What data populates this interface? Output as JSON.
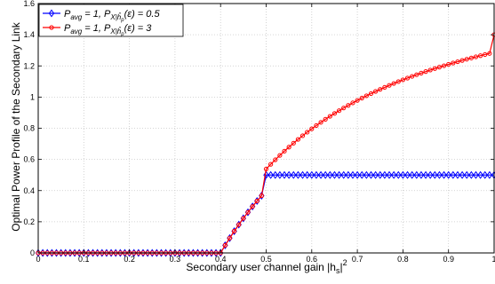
{
  "chart_data": {
    "type": "line",
    "xlabel": "Secondary user channel gain |h",
    "xlabel_sub": "s",
    "xlabel_tail": "|",
    "xlabel_sup": "2",
    "ylabel": "Optimal Power Profile of the Secondary Link",
    "xlim": [
      0,
      1
    ],
    "ylim": [
      0,
      1.6
    ],
    "xticks": [
      0,
      0.1,
      0.2,
      0.3,
      0.4,
      0.5,
      0.6,
      0.7,
      0.8,
      0.9,
      1
    ],
    "xtick_labels": [
      "0",
      "0.1",
      "0.2",
      "0.3",
      "0.4",
      "0.5",
      "0.6",
      "0.7",
      "0.8",
      "0.9",
      "1"
    ],
    "yticks": [
      0,
      0.2,
      0.4,
      0.6,
      0.8,
      1,
      1.2,
      1.4,
      1.6
    ],
    "ytick_labels": [
      "0",
      "0.2",
      "0.4",
      "0.6",
      "0.8",
      "1",
      "1.2",
      "1.4",
      "1.6"
    ],
    "grid": true,
    "legend_position": "top-left",
    "series": [
      {
        "name": "P_avg = 1, P_X|h_p(ε) = 0.5",
        "legend_main": "P",
        "legend_sub1": "avg",
        "legend_mid": " = 1, P",
        "legend_sub2": "X|ĥ",
        "legend_sub2_sub": "p",
        "legend_tail": "(ε) = 0.5",
        "color": "#0000ff",
        "marker": "diamond",
        "x": [
          0,
          0.01,
          0.02,
          0.03,
          0.04,
          0.05,
          0.06,
          0.07,
          0.08,
          0.09,
          0.1,
          0.11,
          0.12,
          0.13,
          0.14,
          0.15,
          0.16,
          0.17,
          0.18,
          0.19,
          0.2,
          0.21,
          0.22,
          0.23,
          0.24,
          0.25,
          0.26,
          0.27,
          0.28,
          0.29,
          0.3,
          0.31,
          0.32,
          0.33,
          0.34,
          0.35,
          0.36,
          0.37,
          0.38,
          0.39,
          0.4,
          0.41,
          0.42,
          0.43,
          0.44,
          0.45,
          0.46,
          0.47,
          0.48,
          0.49,
          0.5,
          0.51,
          0.52,
          0.53,
          0.54,
          0.55,
          0.56,
          0.57,
          0.58,
          0.59,
          0.6,
          0.61,
          0.62,
          0.63,
          0.64,
          0.65,
          0.66,
          0.67,
          0.68,
          0.69,
          0.7,
          0.71,
          0.72,
          0.73,
          0.74,
          0.75,
          0.76,
          0.77,
          0.78,
          0.79,
          0.8,
          0.81,
          0.82,
          0.83,
          0.84,
          0.85,
          0.86,
          0.87,
          0.88,
          0.89,
          0.9,
          0.91,
          0.92,
          0.93,
          0.94,
          0.95,
          0.96,
          0.97,
          0.98,
          0.99,
          1
        ],
        "y": [
          0,
          0,
          0,
          0,
          0,
          0,
          0,
          0,
          0,
          0,
          0,
          0,
          0,
          0,
          0,
          0,
          0,
          0,
          0,
          0,
          0,
          0,
          0,
          0,
          0,
          0,
          0,
          0,
          0,
          0,
          0,
          0,
          0,
          0,
          0,
          0,
          0,
          0,
          0,
          0,
          0,
          0.0488,
          0.0952,
          0.1395,
          0.1818,
          0.2222,
          0.2609,
          0.2979,
          0.3333,
          0.3673,
          0.5,
          0.5,
          0.5,
          0.5,
          0.5,
          0.5,
          0.5,
          0.5,
          0.5,
          0.5,
          0.5,
          0.5,
          0.5,
          0.5,
          0.5,
          0.5,
          0.5,
          0.5,
          0.5,
          0.5,
          0.5,
          0.5,
          0.5,
          0.5,
          0.5,
          0.5,
          0.5,
          0.5,
          0.5,
          0.5,
          0.5,
          0.5,
          0.5,
          0.5,
          0.5,
          0.5,
          0.5,
          0.5,
          0.5,
          0.5,
          0.5,
          0.5,
          0.5,
          0.5,
          0.5,
          0.5,
          0.5,
          0.5,
          0.5,
          0.5,
          0.5
        ]
      },
      {
        "name": "P_avg = 1, P_X|h_p(ε) = 3",
        "legend_main": "P",
        "legend_sub1": "avg",
        "legend_mid": " = 1, P",
        "legend_sub2": "X|ĥ",
        "legend_sub2_sub": "p",
        "legend_tail": "(ε) = 3",
        "color": "#ff0000",
        "marker": "circle",
        "x": [
          0,
          0.01,
          0.02,
          0.03,
          0.04,
          0.05,
          0.06,
          0.07,
          0.08,
          0.09,
          0.1,
          0.11,
          0.12,
          0.13,
          0.14,
          0.15,
          0.16,
          0.17,
          0.18,
          0.19,
          0.2,
          0.21,
          0.22,
          0.23,
          0.24,
          0.25,
          0.26,
          0.27,
          0.28,
          0.29,
          0.3,
          0.31,
          0.32,
          0.33,
          0.34,
          0.35,
          0.36,
          0.37,
          0.38,
          0.39,
          0.4,
          0.41,
          0.42,
          0.43,
          0.44,
          0.45,
          0.46,
          0.47,
          0.48,
          0.49,
          0.5,
          0.51,
          0.52,
          0.53,
          0.54,
          0.55,
          0.56,
          0.57,
          0.58,
          0.59,
          0.6,
          0.61,
          0.62,
          0.63,
          0.64,
          0.65,
          0.66,
          0.67,
          0.68,
          0.69,
          0.7,
          0.71,
          0.72,
          0.73,
          0.74,
          0.75,
          0.76,
          0.77,
          0.78,
          0.79,
          0.8,
          0.81,
          0.82,
          0.83,
          0.84,
          0.85,
          0.86,
          0.87,
          0.88,
          0.89,
          0.9,
          0.91,
          0.92,
          0.93,
          0.94,
          0.95,
          0.96,
          0.97,
          0.98,
          0.99,
          1
        ],
        "y": [
          0,
          0,
          0,
          0,
          0,
          0,
          0,
          0,
          0,
          0,
          0,
          0,
          0,
          0,
          0,
          0,
          0,
          0,
          0,
          0,
          0,
          0,
          0,
          0,
          0,
          0,
          0,
          0,
          0,
          0,
          0,
          0,
          0,
          0,
          0,
          0,
          0,
          0,
          0,
          0,
          0,
          0.0488,
          0.0952,
          0.1395,
          0.1818,
          0.2222,
          0.2609,
          0.2979,
          0.3333,
          0.3673,
          0.5385,
          0.5686,
          0.5977,
          0.6258,
          0.6529,
          0.679,
          0.7042,
          0.7285,
          0.7519,
          0.7746,
          0.7964,
          0.8175,
          0.8379,
          0.8576,
          0.8766,
          0.895,
          0.9128,
          0.93,
          0.9467,
          0.9628,
          0.9784,
          0.9935,
          1.0082,
          1.0224,
          1.0362,
          1.0495,
          1.0625,
          1.0751,
          1.0873,
          1.0992,
          1.1107,
          1.1218,
          1.1327,
          1.1433,
          1.1536,
          1.1636,
          1.1734,
          1.1829,
          1.1921,
          1.2011,
          1.2099,
          1.2185,
          1.2268,
          1.235,
          1.2429,
          1.2507,
          1.2582,
          1.2656,
          1.2729,
          1.2799,
          1.4
        ]
      }
    ]
  }
}
